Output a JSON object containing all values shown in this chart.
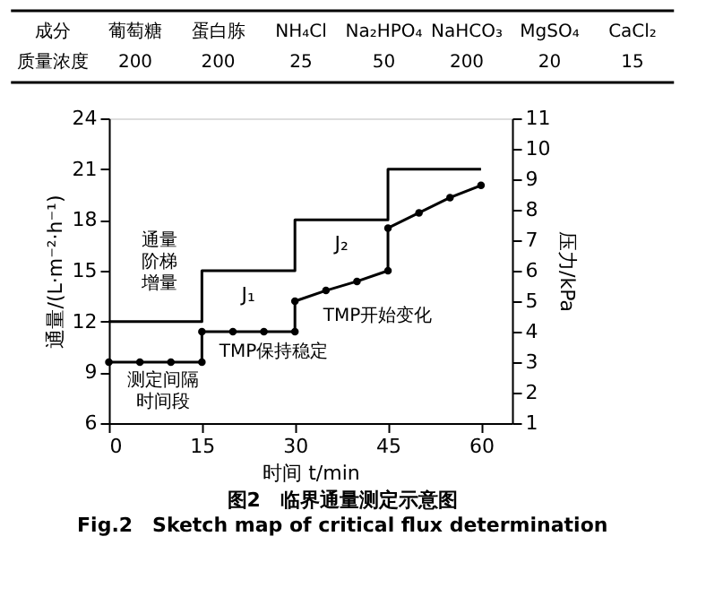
{
  "chart_data": {
    "type": "line",
    "title": "图2　临界通量测定示意图",
    "subtitle": "Fig.2　Sketch map of critical flux determination",
    "xlabel": "时间 t/min",
    "ylabel": "通量/(L·m⁻²·h⁻¹)",
    "y2label": "压力/kPa",
    "xlim": [
      0,
      65
    ],
    "xticks": [
      0,
      15,
      30,
      45,
      60
    ],
    "ylim": [
      6,
      24
    ],
    "yticks": [
      6,
      9,
      12,
      15,
      18,
      21,
      24
    ],
    "y2lim": [
      1,
      11
    ],
    "y2ticks": [
      1,
      2,
      3,
      4,
      5,
      6,
      7,
      8,
      9,
      10,
      11
    ],
    "grid": false,
    "series": [
      {
        "type": "step",
        "color": "#000000",
        "marker": "none",
        "x": [
          0,
          15,
          30,
          45,
          60
        ],
        "values": [
          12,
          15,
          18,
          21,
          21
        ]
      },
      {
        "axis": "y2",
        "color": "#000000",
        "marker": "circle",
        "x": [
          0,
          5,
          10,
          15,
          15,
          20,
          25,
          30,
          30,
          35,
          40,
          45,
          45,
          50,
          55,
          60
        ],
        "values": [
          3,
          3,
          3,
          3,
          4,
          4,
          4,
          4,
          5,
          5.35,
          5.65,
          6,
          7.4,
          7.9,
          8.4,
          8.8
        ]
      }
    ],
    "annotations": [
      "成分 葡萄糖 蛋白胨 NH₄Cl Na₂HPO₄ NaHCO₃ MgSO₄ CaCl₂",
      "质量浓度 200 200 25 50 200 20 15",
      "通量阶梯增量",
      {
        "text": "J₁",
        "x": 22.5,
        "y": 15
      },
      {
        "text": "J₂",
        "x": 37.5,
        "y": 18
      },
      "TMP开始变化",
      "TMP保持稳定",
      "测定间隔时间段"
    ]
  }
}
